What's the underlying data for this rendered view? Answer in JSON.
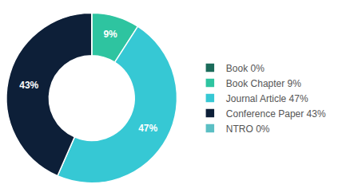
{
  "chart_data": {
    "type": "pie",
    "categories": [
      "Book 0%",
      "Book Chapter 9%",
      "Journal Article 47%",
      "Conference Paper 43%",
      "NTRO 0%"
    ],
    "values": [
      0.001,
      9,
      47,
      43,
      0.001
    ],
    "value_labels": [
      null,
      "9%",
      "47%",
      "43%",
      null
    ],
    "data_labels": true,
    "colors": [
      "#1b6b5a",
      "#2ec4a0",
      "#36c8d4",
      "#0d1f38",
      "#5bbfc4"
    ],
    "legend": "right"
  }
}
